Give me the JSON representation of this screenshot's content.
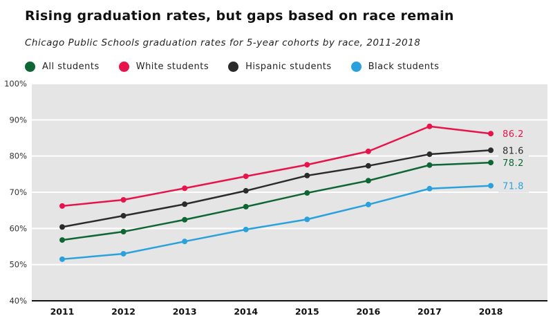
{
  "chart_data": {
    "type": "line",
    "title": "Rising graduation rates, but gaps based on race remain",
    "subtitle": "Chicago Public Schools graduation rates for 5-year cohorts by race, 2011-2018",
    "xlabel": "",
    "ylabel": "",
    "x": [
      "2011",
      "2012",
      "2013",
      "2014",
      "2015",
      "2016",
      "2017",
      "2018"
    ],
    "ylim": [
      40,
      100
    ],
    "yticks": [
      40,
      50,
      60,
      70,
      80,
      90,
      100
    ],
    "ytick_labels": [
      "40%",
      "50%",
      "60%",
      "70%",
      "80%",
      "90%",
      "100%"
    ],
    "grid": true,
    "legend_position": "top-left",
    "series": [
      {
        "name": "All students",
        "color": "#0d6634",
        "values": [
          56.8,
          59.1,
          62.4,
          66.0,
          69.8,
          73.2,
          77.5,
          78.2
        ],
        "end_label": "78.2"
      },
      {
        "name": "White students",
        "color": "#e8134b",
        "values": [
          66.2,
          67.9,
          71.1,
          74.4,
          77.6,
          81.3,
          88.2,
          86.2
        ],
        "end_label": "86.2"
      },
      {
        "name": "Hispanic students",
        "color": "#2b2b2b",
        "values": [
          60.4,
          63.5,
          66.7,
          70.4,
          74.6,
          77.3,
          80.5,
          81.6
        ],
        "end_label": "81.6"
      },
      {
        "name": "Black students",
        "color": "#2aa1dc",
        "values": [
          51.5,
          53.0,
          56.4,
          59.7,
          62.5,
          66.6,
          71.0,
          71.8
        ],
        "end_label": "71.8"
      }
    ]
  },
  "colors": {
    "plot_background": "#e5e5e5",
    "gridline": "#ffffff",
    "baseline": "#111111"
  }
}
